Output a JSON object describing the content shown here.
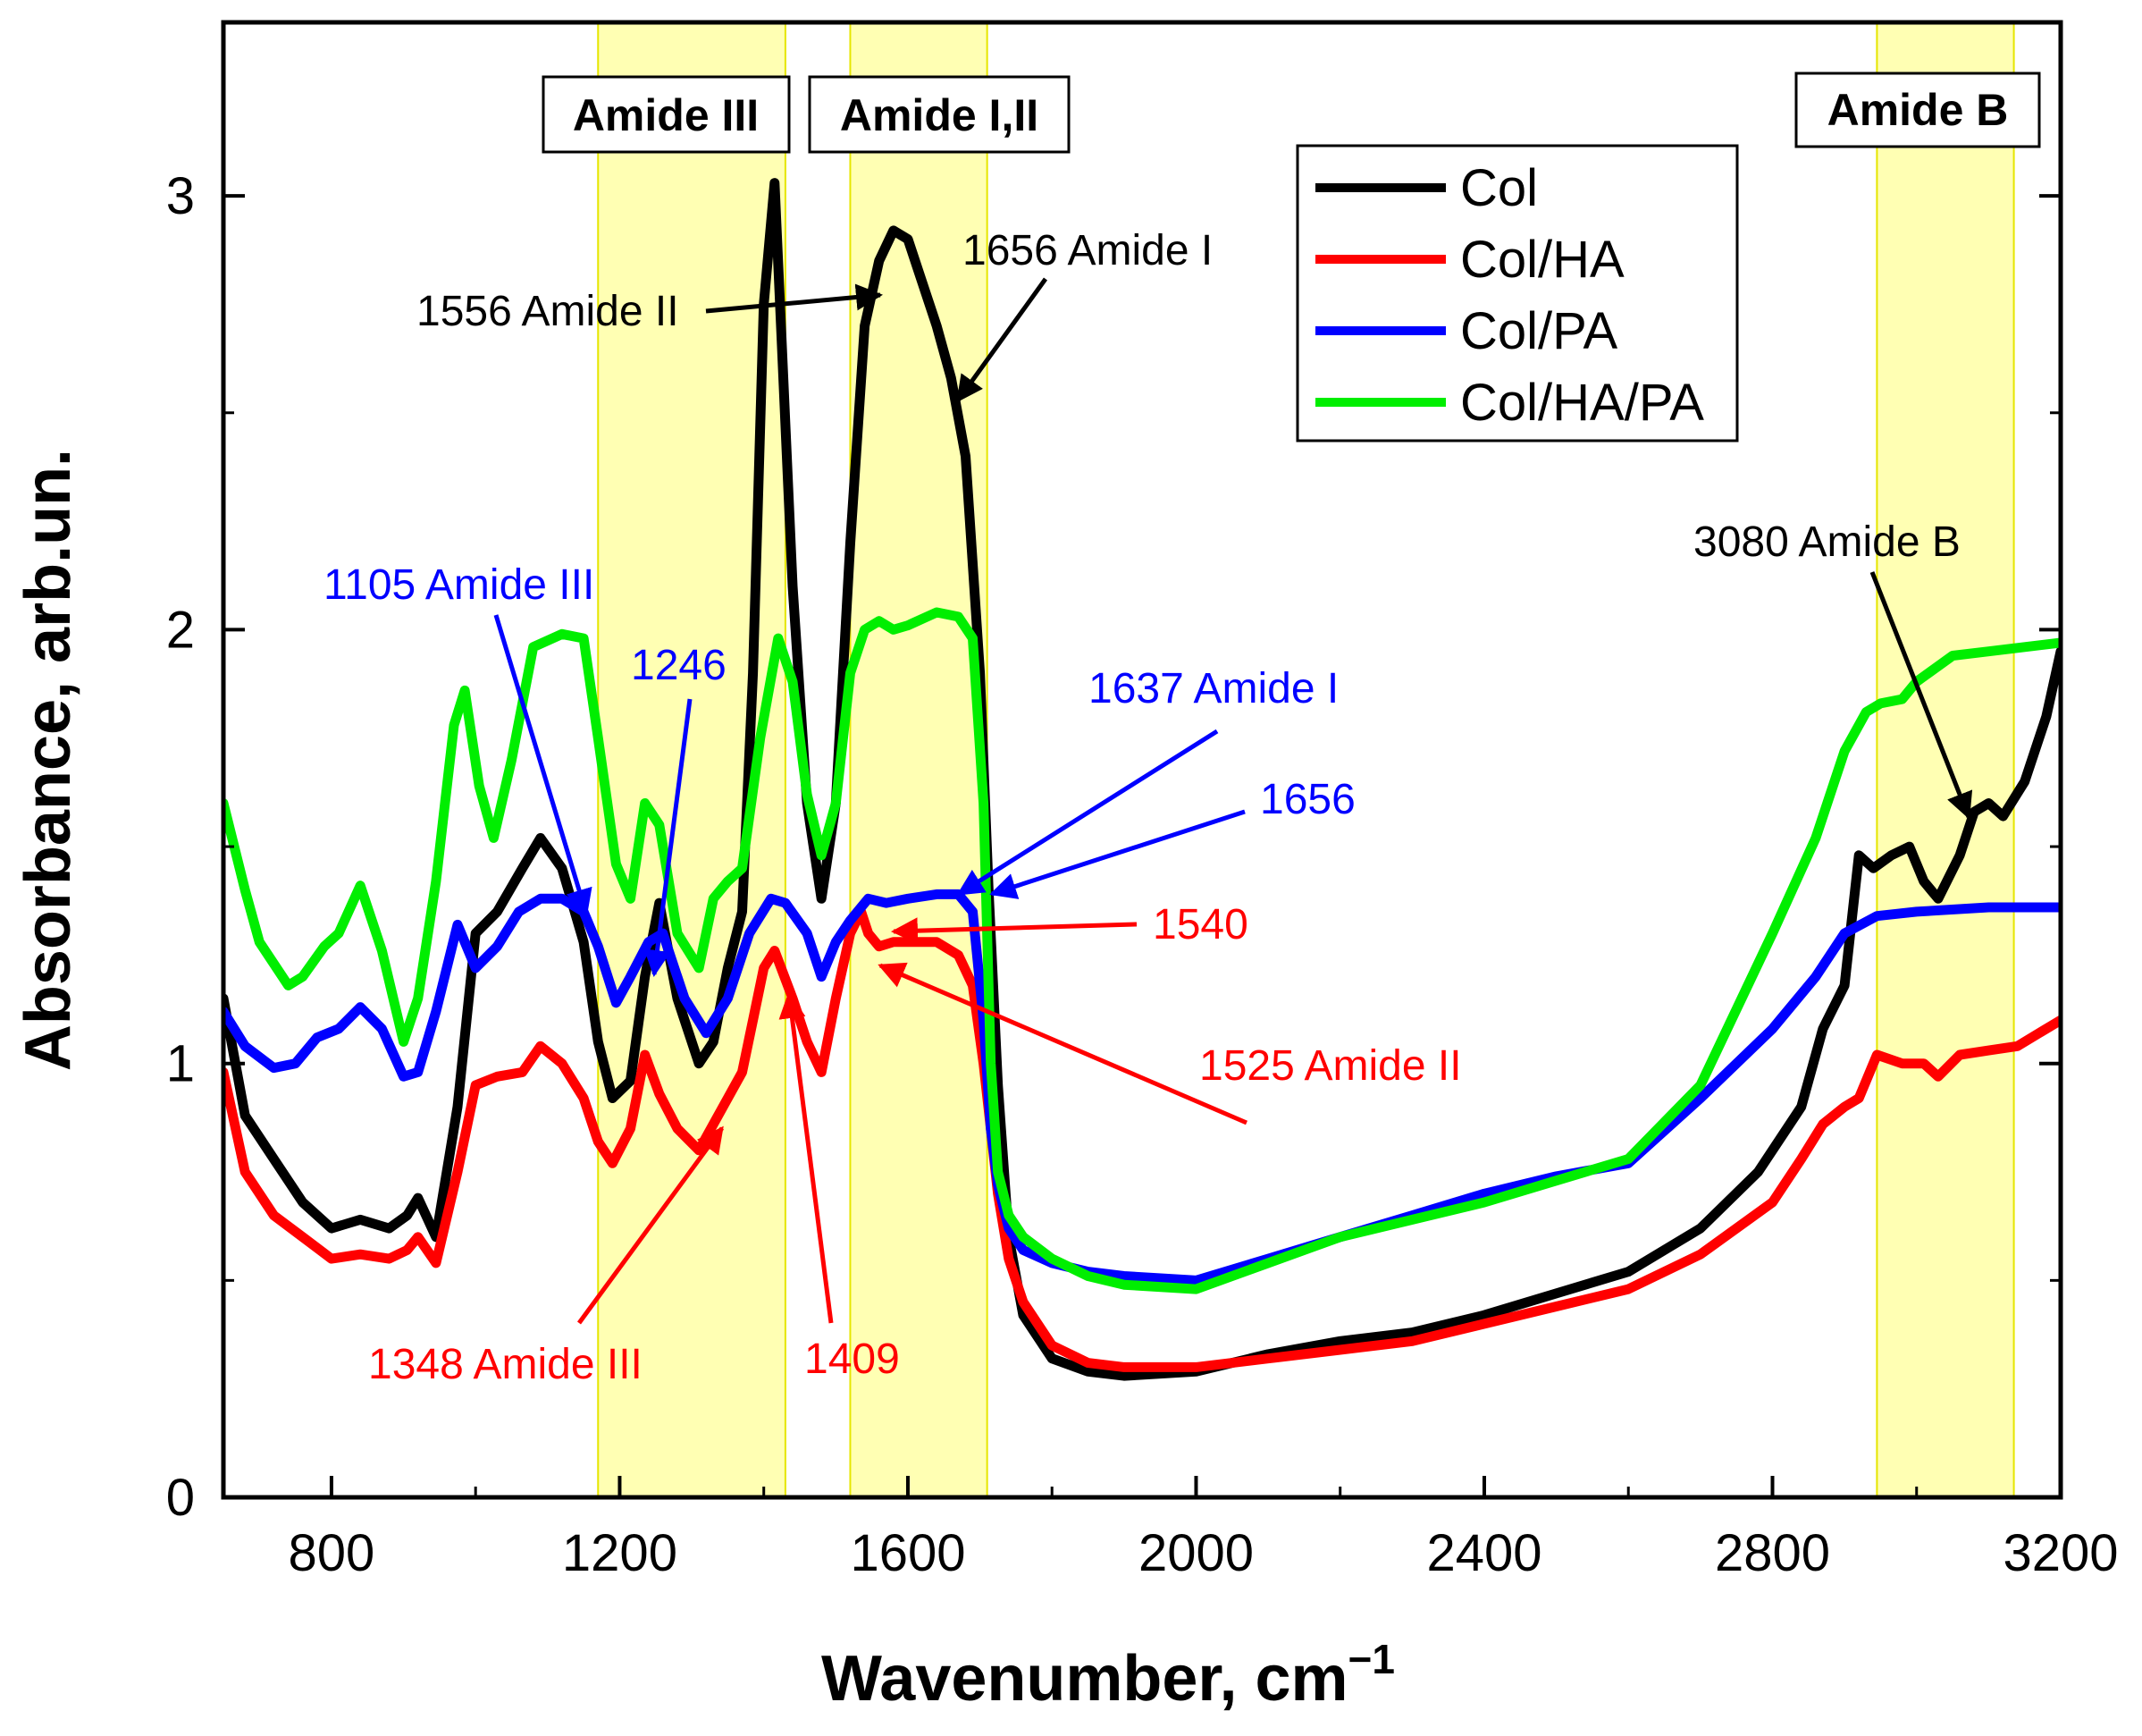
{
  "chart_data": {
    "type": "line",
    "title": "",
    "xlabel": "Wavenumber, cm",
    "xlabel_sup": "−1",
    "ylabel": "Absorbance, arb.un.",
    "xlim": [
      650,
      3200
    ],
    "ylim": [
      0,
      3.4
    ],
    "xticks": [
      800,
      1200,
      1600,
      2000,
      2400,
      2800,
      3200
    ],
    "xtick_labels": [
      "800",
      "1200",
      "1600",
      "2000",
      "2400",
      "2800",
      "3200"
    ],
    "yticks": [
      0,
      1,
      2,
      3
    ],
    "ytick_labels": [
      "0",
      "1",
      "2",
      "3"
    ],
    "grid": false,
    "legend_position": "top-right",
    "bands": [
      {
        "label": "Amide III",
        "from": 1170,
        "to": 1430,
        "color": "#ffff99"
      },
      {
        "label": "Amide I,II",
        "from": 1520,
        "to": 1710,
        "color": "#ffff99"
      },
      {
        "label": "Amide B",
        "from": 2945,
        "to": 3135,
        "color": "#ffff99"
      }
    ],
    "series": [
      {
        "name": "Col",
        "color": "#000000",
        "x": [
          650,
          680,
          720,
          760,
          800,
          840,
          880,
          905,
          920,
          945,
          975,
          1000,
          1030,
          1065,
          1090,
          1120,
          1150,
          1170,
          1190,
          1215,
          1235,
          1255,
          1280,
          1310,
          1330,
          1350,
          1370,
          1385,
          1400,
          1415,
          1440,
          1460,
          1480,
          1500,
          1520,
          1540,
          1560,
          1580,
          1600,
          1620,
          1640,
          1660,
          1680,
          1700,
          1712,
          1725,
          1740,
          1760,
          1800,
          1850,
          1900,
          2000,
          2100,
          2200,
          2300,
          2400,
          2500,
          2600,
          2700,
          2780,
          2840,
          2870,
          2900,
          2920,
          2940,
          2965,
          2990,
          3010,
          3030,
          3060,
          3080,
          3100,
          3120,
          3150,
          3180,
          3200
        ],
        "values": [
          1.15,
          0.88,
          0.78,
          0.68,
          0.62,
          0.64,
          0.62,
          0.65,
          0.69,
          0.6,
          0.9,
          1.3,
          1.35,
          1.45,
          1.52,
          1.45,
          1.28,
          1.05,
          0.92,
          0.96,
          1.2,
          1.37,
          1.15,
          1.0,
          1.05,
          1.22,
          1.35,
          1.9,
          2.75,
          3.03,
          2.1,
          1.6,
          1.38,
          1.6,
          2.2,
          2.7,
          2.85,
          2.92,
          2.9,
          2.8,
          2.7,
          2.58,
          2.4,
          1.9,
          1.4,
          0.95,
          0.6,
          0.42,
          0.32,
          0.29,
          0.28,
          0.29,
          0.33,
          0.36,
          0.38,
          0.42,
          0.47,
          0.52,
          0.62,
          0.75,
          0.9,
          1.08,
          1.18,
          1.48,
          1.45,
          1.48,
          1.5,
          1.42,
          1.38,
          1.48,
          1.58,
          1.6,
          1.57,
          1.65,
          1.8,
          1.95
        ]
      },
      {
        "name": "Col/HA",
        "color": "#ff0000",
        "x": [
          650,
          680,
          720,
          760,
          800,
          840,
          880,
          905,
          920,
          945,
          975,
          1000,
          1030,
          1065,
          1090,
          1120,
          1150,
          1170,
          1190,
          1215,
          1235,
          1255,
          1280,
          1310,
          1330,
          1350,
          1370,
          1385,
          1400,
          1415,
          1440,
          1460,
          1480,
          1500,
          1520,
          1535,
          1545,
          1560,
          1580,
          1600,
          1640,
          1670,
          1690,
          1705,
          1715,
          1725,
          1740,
          1760,
          1800,
          1850,
          1900,
          2000,
          2100,
          2200,
          2300,
          2400,
          2500,
          2600,
          2700,
          2800,
          2840,
          2870,
          2900,
          2920,
          2945,
          2980,
          3010,
          3030,
          3060,
          3100,
          3140,
          3170,
          3200
        ],
        "values": [
          0.98,
          0.75,
          0.65,
          0.6,
          0.55,
          0.56,
          0.55,
          0.57,
          0.6,
          0.54,
          0.75,
          0.95,
          0.97,
          0.98,
          1.04,
          1.0,
          0.92,
          0.82,
          0.77,
          0.85,
          1.02,
          0.93,
          0.85,
          0.8,
          0.86,
          0.92,
          0.98,
          1.1,
          1.22,
          1.26,
          1.15,
          1.05,
          0.98,
          1.15,
          1.3,
          1.35,
          1.3,
          1.27,
          1.28,
          1.28,
          1.28,
          1.25,
          1.18,
          1.0,
          0.85,
          0.7,
          0.55,
          0.45,
          0.35,
          0.31,
          0.3,
          0.3,
          0.32,
          0.34,
          0.36,
          0.4,
          0.44,
          0.48,
          0.56,
          0.68,
          0.78,
          0.86,
          0.9,
          0.92,
          1.02,
          1.0,
          1.0,
          0.97,
          1.02,
          1.03,
          1.04,
          1.07,
          1.1
        ]
      },
      {
        "name": "Col/PA",
        "color": "#0000ff",
        "x": [
          650,
          680,
          720,
          750,
          780,
          810,
          840,
          870,
          900,
          920,
          945,
          975,
          1000,
          1030,
          1060,
          1090,
          1120,
          1150,
          1170,
          1195,
          1215,
          1240,
          1260,
          1290,
          1320,
          1350,
          1380,
          1410,
          1430,
          1460,
          1480,
          1500,
          1520,
          1545,
          1570,
          1600,
          1640,
          1670,
          1690,
          1705,
          1715,
          1725,
          1740,
          1760,
          1800,
          1850,
          1900,
          2000,
          2100,
          2200,
          2300,
          2400,
          2500,
          2600,
          2700,
          2800,
          2860,
          2900,
          2945,
          3000,
          3100,
          3200
        ],
        "values": [
          1.12,
          1.04,
          0.99,
          1.0,
          1.06,
          1.08,
          1.13,
          1.08,
          0.97,
          0.98,
          1.12,
          1.32,
          1.22,
          1.27,
          1.35,
          1.38,
          1.38,
          1.35,
          1.27,
          1.14,
          1.2,
          1.28,
          1.3,
          1.15,
          1.07,
          1.15,
          1.3,
          1.38,
          1.37,
          1.3,
          1.2,
          1.28,
          1.33,
          1.38,
          1.37,
          1.38,
          1.39,
          1.39,
          1.35,
          1.1,
          0.85,
          0.72,
          0.62,
          0.57,
          0.54,
          0.52,
          0.51,
          0.5,
          0.55,
          0.6,
          0.65,
          0.7,
          0.74,
          0.77,
          0.92,
          1.08,
          1.2,
          1.3,
          1.34,
          1.35,
          1.36,
          1.36
        ]
      },
      {
        "name": "Col/HA/PA",
        "color": "#00ee00",
        "x": [
          650,
          680,
          700,
          740,
          760,
          790,
          810,
          840,
          870,
          900,
          920,
          945,
          970,
          985,
          1005,
          1025,
          1050,
          1080,
          1120,
          1150,
          1170,
          1195,
          1215,
          1235,
          1255,
          1280,
          1310,
          1330,
          1350,
          1370,
          1395,
          1420,
          1440,
          1460,
          1480,
          1500,
          1520,
          1540,
          1560,
          1580,
          1600,
          1640,
          1670,
          1690,
          1705,
          1715,
          1725,
          1740,
          1760,
          1800,
          1850,
          1900,
          2000,
          2100,
          2200,
          2300,
          2400,
          2500,
          2600,
          2700,
          2800,
          2860,
          2900,
          2930,
          2950,
          2980,
          3000,
          3050,
          3100,
          3150,
          3200
        ],
        "values": [
          1.6,
          1.4,
          1.28,
          1.18,
          1.2,
          1.27,
          1.3,
          1.41,
          1.26,
          1.05,
          1.15,
          1.42,
          1.78,
          1.86,
          1.64,
          1.52,
          1.7,
          1.96,
          1.99,
          1.98,
          1.75,
          1.46,
          1.38,
          1.6,
          1.55,
          1.3,
          1.22,
          1.38,
          1.42,
          1.45,
          1.75,
          1.98,
          1.88,
          1.62,
          1.48,
          1.6,
          1.9,
          2.0,
          2.02,
          2.0,
          2.01,
          2.04,
          2.03,
          1.98,
          1.6,
          1.0,
          0.75,
          0.65,
          0.6,
          0.55,
          0.51,
          0.49,
          0.48,
          0.54,
          0.6,
          0.64,
          0.68,
          0.73,
          0.78,
          0.95,
          1.3,
          1.52,
          1.72,
          1.81,
          1.83,
          1.84,
          1.88,
          1.94,
          1.95,
          1.96,
          1.97
        ]
      }
    ],
    "annotations": [
      {
        "text": "1556 Amide II",
        "color": "#000000"
      },
      {
        "text": "1656 Amide I",
        "color": "#000000"
      },
      {
        "text": "3080 Amide B",
        "color": "#000000"
      },
      {
        "text": "1105 Amide III",
        "color": "#0000ff"
      },
      {
        "text": "1246",
        "color": "#0000ff"
      },
      {
        "text": "1637 Amide I",
        "color": "#0000ff"
      },
      {
        "text": "1656",
        "color": "#0000ff"
      },
      {
        "text": "1540",
        "color": "#ff0000"
      },
      {
        "text": "1525 Amide II",
        "color": "#ff0000"
      },
      {
        "text": "1348 Amide III",
        "color": "#ff0000"
      },
      {
        "text": "1409",
        "color": "#ff0000"
      }
    ]
  }
}
